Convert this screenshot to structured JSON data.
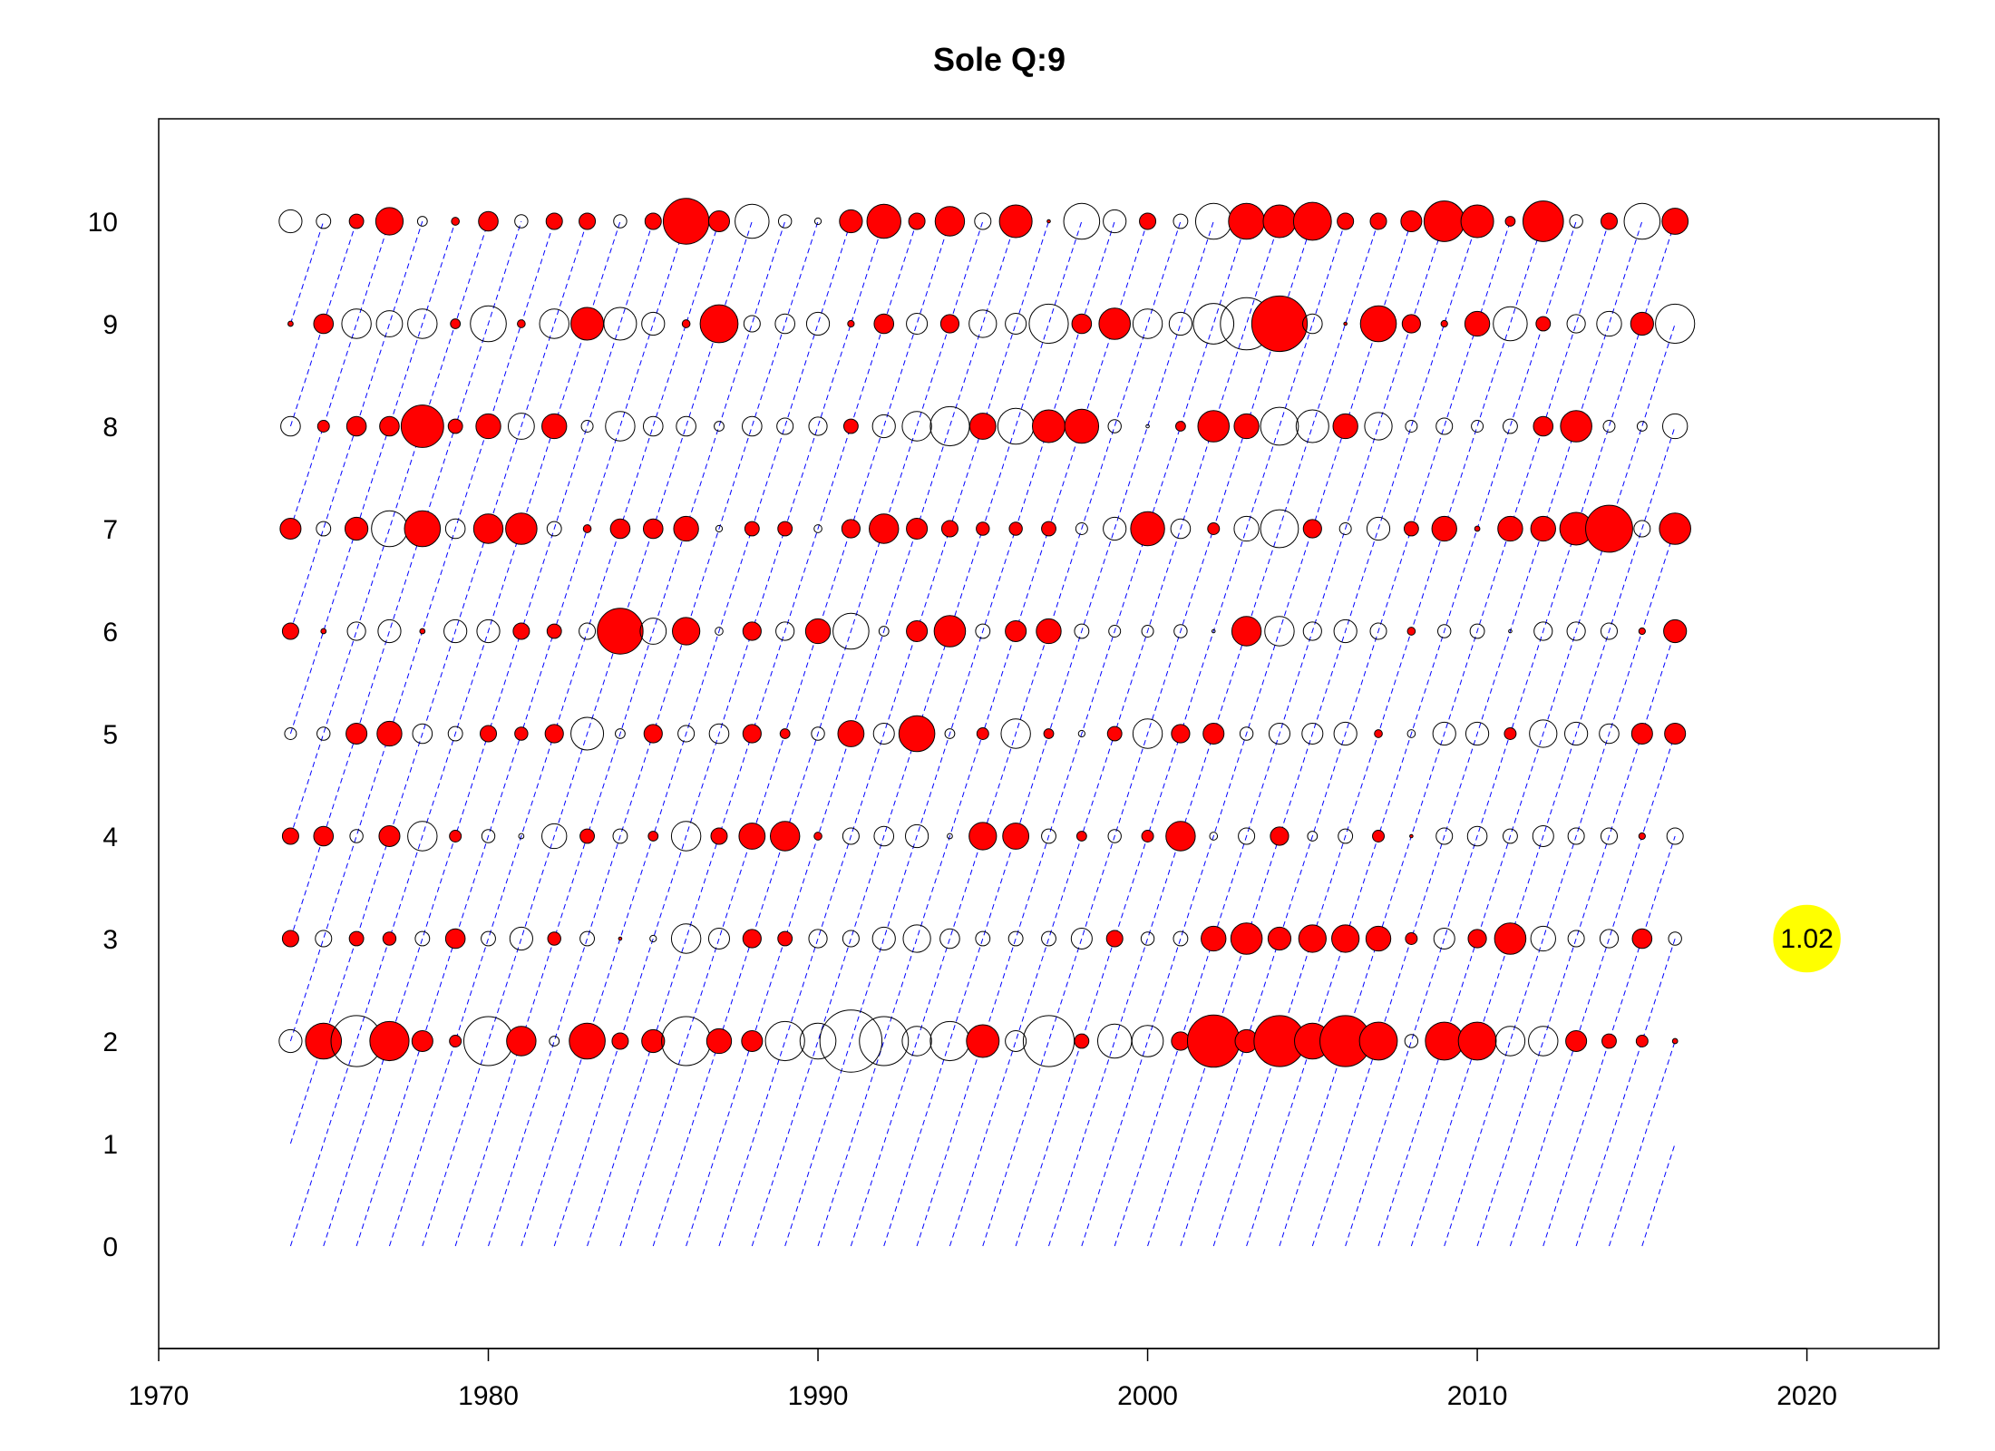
{
  "chart_data": {
    "type": "scatter",
    "subtype": "bubble",
    "title": "Sole Q:9",
    "xlabel": "",
    "ylabel": "",
    "xlim": [
      1970,
      2024
    ],
    "ylim": [
      -1,
      11
    ],
    "x_ticks": [
      1970,
      1980,
      1990,
      2000,
      2010,
      2020
    ],
    "y_ticks": [
      0,
      1,
      2,
      3,
      4,
      5,
      6,
      7,
      8,
      9,
      10
    ],
    "grid": false,
    "legend": "none",
    "colors": {
      "positive_fill": "#ff0000",
      "negative_fill": "none",
      "outline": "#000000",
      "cohort_line": "#0000ff",
      "reference_fill": "#ffff00"
    },
    "bubble_encoding": "size proportional to residual magnitude; filled red = positive, open = negative",
    "years": [
      1974,
      1975,
      1976,
      1977,
      1978,
      1979,
      1980,
      1981,
      1982,
      1983,
      1984,
      1985,
      1986,
      1987,
      1988,
      1989,
      1990,
      1991,
      1992,
      1993,
      1994,
      1995,
      1996,
      1997,
      1998,
      1999,
      2000,
      2001,
      2002,
      2003,
      2004,
      2005,
      2006,
      2007,
      2008,
      2009,
      2010,
      2011,
      2012,
      2013,
      2014,
      2015,
      2016
    ],
    "ages": [
      2,
      3,
      4,
      5,
      6,
      7,
      8,
      9,
      10
    ],
    "cohort_lines": {
      "start_age": 0,
      "end_age": 10,
      "first_cohort": 1964,
      "last_cohort": 2016
    },
    "series": [
      {
        "age": 10,
        "values": [
          -0.35,
          -0.22,
          0.22,
          0.42,
          -0.15,
          0.12,
          0.3,
          -0.2,
          0.25,
          0.25,
          -0.2,
          0.25,
          0.7,
          0.32,
          -0.52,
          -0.2,
          -0.1,
          0.35,
          0.52,
          0.25,
          0.45,
          -0.25,
          0.5,
          0.05,
          -0.55,
          -0.35,
          0.25,
          -0.22,
          -0.55,
          0.55,
          0.5,
          0.58,
          0.25,
          0.25,
          0.32,
          0.62,
          0.5,
          0.15,
          0.62,
          -0.2,
          0.25,
          -0.55,
          0.4
        ]
      },
      {
        "age": 9,
        "values": [
          0.08,
          0.3,
          -0.45,
          -0.4,
          -0.45,
          0.15,
          -0.55,
          0.12,
          -0.45,
          0.5,
          -0.5,
          -0.35,
          0.12,
          0.58,
          -0.25,
          -0.3,
          -0.35,
          0.1,
          0.3,
          -0.32,
          0.28,
          -0.42,
          -0.32,
          -0.6,
          0.3,
          0.48,
          -0.45,
          -0.35,
          -0.62,
          -0.8,
          0.85,
          -0.3,
          0.05,
          0.55,
          0.28,
          0.1,
          0.38,
          -0.52,
          0.22,
          -0.28,
          -0.38,
          0.35,
          -0.6
        ]
      },
      {
        "age": 8,
        "values": [
          -0.3,
          0.18,
          0.3,
          0.3,
          0.65,
          0.22,
          0.38,
          -0.4,
          0.38,
          -0.18,
          -0.45,
          -0.3,
          -0.3,
          -0.15,
          -0.3,
          -0.25,
          -0.28,
          0.22,
          -0.35,
          -0.45,
          -0.6,
          0.4,
          -0.55,
          0.5,
          0.52,
          -0.2,
          -0.05,
          0.15,
          0.48,
          0.38,
          -0.58,
          -0.5,
          0.38,
          -0.42,
          -0.18,
          -0.25,
          -0.18,
          -0.22,
          0.3,
          0.48,
          -0.18,
          -0.15,
          -0.38
        ]
      },
      {
        "age": 7,
        "values": [
          0.32,
          -0.22,
          0.35,
          -0.55,
          0.55,
          -0.3,
          0.45,
          0.48,
          -0.22,
          0.12,
          0.3,
          0.3,
          0.38,
          -0.1,
          0.22,
          0.22,
          -0.12,
          0.28,
          0.45,
          0.32,
          0.25,
          0.2,
          0.2,
          0.22,
          -0.18,
          -0.35,
          0.52,
          -0.3,
          0.18,
          -0.38,
          -0.58,
          0.28,
          -0.18,
          -0.35,
          0.22,
          0.38,
          0.08,
          0.38,
          0.38,
          0.5,
          0.72,
          -0.25,
          0.48
        ]
      },
      {
        "age": 6,
        "values": [
          0.25,
          0.08,
          -0.28,
          -0.35,
          0.08,
          -0.35,
          -0.35,
          0.25,
          0.22,
          -0.25,
          0.7,
          -0.4,
          0.42,
          -0.12,
          0.28,
          -0.28,
          0.38,
          -0.55,
          -0.15,
          0.32,
          0.48,
          -0.22,
          0.32,
          0.38,
          -0.22,
          -0.18,
          -0.18,
          -0.2,
          -0.05,
          0.45,
          -0.45,
          -0.28,
          -0.35,
          -0.25,
          0.12,
          -0.2,
          -0.22,
          -0.05,
          -0.28,
          -0.28,
          -0.25,
          0.1,
          0.35
        ]
      },
      {
        "age": 5,
        "values": [
          -0.18,
          -0.2,
          0.32,
          0.38,
          -0.3,
          -0.22,
          0.25,
          0.2,
          0.28,
          -0.5,
          -0.15,
          0.28,
          -0.25,
          -0.3,
          0.28,
          0.15,
          -0.2,
          0.4,
          -0.32,
          0.55,
          -0.15,
          0.18,
          -0.45,
          0.15,
          -0.1,
          0.22,
          -0.45,
          0.28,
          0.32,
          -0.2,
          -0.32,
          -0.32,
          -0.35,
          0.12,
          -0.12,
          -0.35,
          -0.35,
          0.18,
          -0.42,
          -0.35,
          -0.3,
          0.32,
          0.32
        ]
      },
      {
        "age": 4,
        "values": [
          0.25,
          0.3,
          -0.2,
          0.32,
          -0.45,
          0.18,
          -0.2,
          -0.08,
          -0.38,
          0.22,
          -0.22,
          0.15,
          -0.45,
          0.25,
          0.4,
          0.45,
          0.12,
          -0.25,
          -0.3,
          -0.35,
          -0.08,
          0.42,
          0.4,
          -0.22,
          0.15,
          -0.2,
          0.18,
          0.45,
          -0.12,
          -0.25,
          0.28,
          -0.15,
          -0.22,
          0.18,
          0.05,
          -0.25,
          -0.3,
          -0.22,
          -0.32,
          -0.25,
          -0.25,
          0.1,
          -0.25
        ]
      },
      {
        "age": 3,
        "values": [
          0.25,
          -0.25,
          0.22,
          0.2,
          -0.22,
          0.3,
          -0.22,
          -0.35,
          0.2,
          -0.22,
          0.05,
          -0.1,
          -0.45,
          -0.32,
          0.28,
          0.22,
          -0.28,
          -0.25,
          -0.35,
          -0.42,
          -0.3,
          -0.22,
          -0.22,
          -0.22,
          -0.32,
          0.25,
          -0.2,
          -0.22,
          0.38,
          0.48,
          0.35,
          0.42,
          0.42,
          0.38,
          0.18,
          -0.32,
          0.28,
          0.48,
          -0.38,
          -0.25,
          -0.28,
          0.3,
          -0.2
        ]
      },
      {
        "age": 2,
        "values": [
          -0.35,
          0.55,
          -0.78,
          0.6,
          0.32,
          0.18,
          -0.75,
          0.45,
          -0.15,
          0.55,
          0.25,
          0.35,
          -0.75,
          0.38,
          0.32,
          -0.6,
          -0.55,
          -0.95,
          -0.75,
          -0.45,
          -0.6,
          0.5,
          -0.32,
          -0.78,
          0.22,
          -0.52,
          -0.48,
          0.28,
          0.8,
          0.35,
          0.78,
          0.55,
          0.78,
          0.58,
          -0.2,
          0.58,
          0.58,
          -0.45,
          -0.45,
          0.32,
          0.22,
          0.18,
          0.08
        ]
      }
    ],
    "reference": {
      "x": 2020,
      "y": 3,
      "value": 1.02,
      "label": "1.02"
    }
  }
}
